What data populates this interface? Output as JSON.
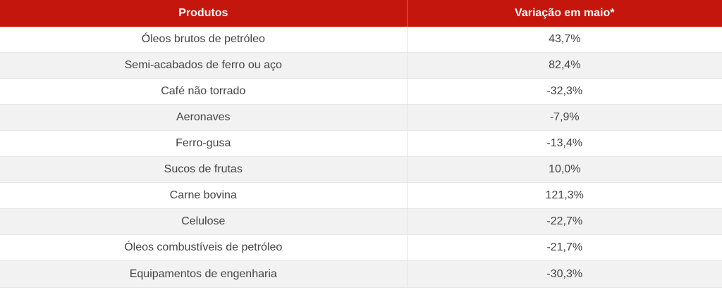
{
  "table": {
    "headers": {
      "product": "Produtos",
      "variation": "Variação em maio*"
    },
    "rows": [
      {
        "product": "Óleos brutos de petróleo",
        "variation": "43,7%"
      },
      {
        "product": "Semi-acabados de ferro ou aço",
        "variation": "82,4%"
      },
      {
        "product": "Café não torrado",
        "variation": "-32,3%"
      },
      {
        "product": "Aeronaves",
        "variation": "-7,9%"
      },
      {
        "product": "Ferro-gusa",
        "variation": "-13,4%"
      },
      {
        "product": "Sucos de frutas",
        "variation": "10,0%"
      },
      {
        "product": "Carne bovina",
        "variation": "121,3%"
      },
      {
        "product": "Celulose",
        "variation": "-22,7%"
      },
      {
        "product": "Óleos combustíveis de petróleo",
        "variation": "-21,7%"
      },
      {
        "product": "Equipamentos de engenharia",
        "variation": "-30,3%"
      }
    ]
  },
  "colors": {
    "header_bg": "#c4160d",
    "header_text": "#ffffff",
    "row_alt_bg": "#f2f2f2",
    "cell_text": "#444444"
  }
}
